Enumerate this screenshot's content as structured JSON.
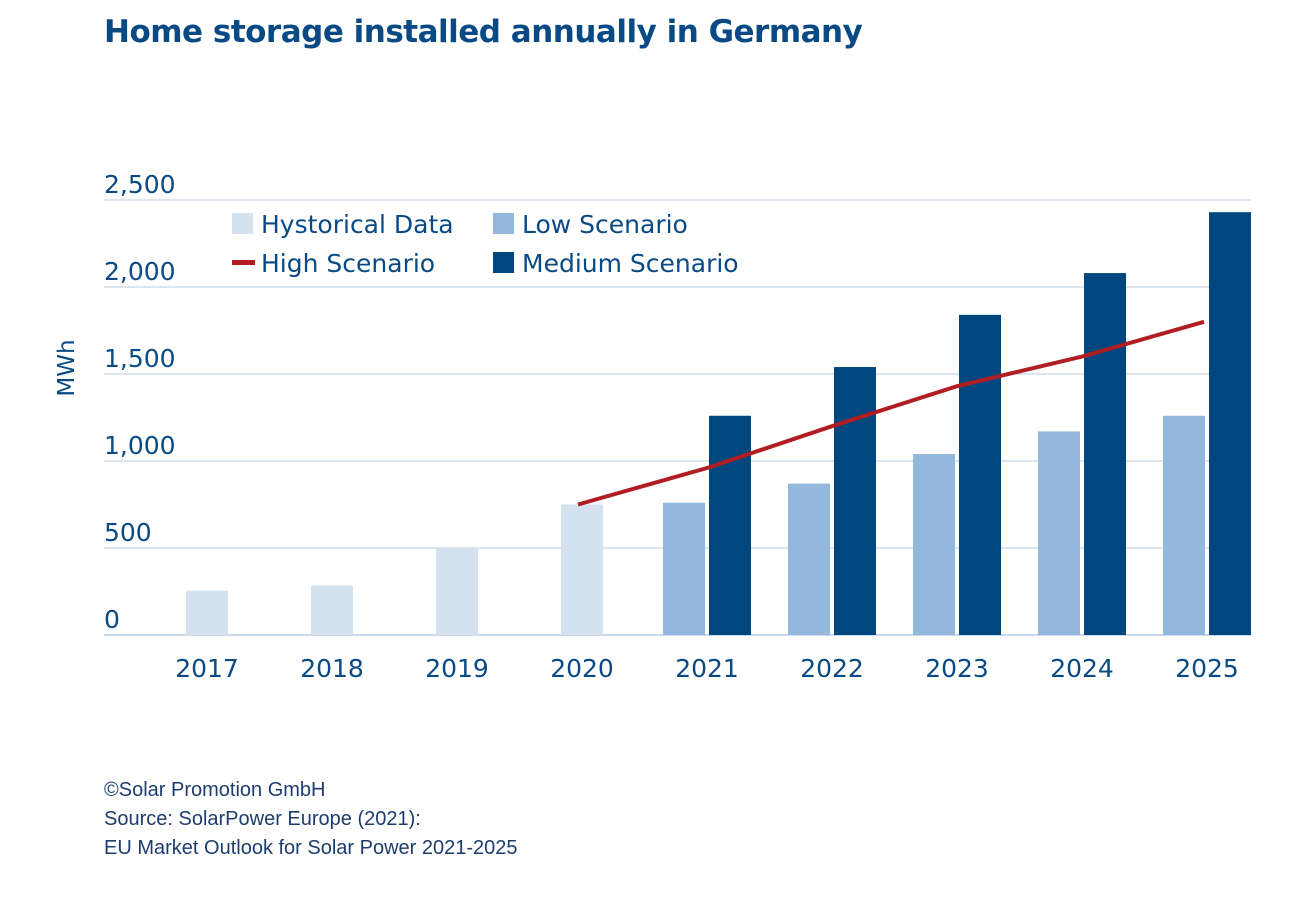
{
  "colors": {
    "title": "#0a4a84",
    "axis_text": "#0a4a84",
    "grid": "#b9cde3",
    "historical": "#d4e1ef",
    "low": "#94b7dc",
    "medium": "#00477f",
    "high": "#b01e23"
  },
  "chart_data": {
    "type": "bar",
    "title": "Home storage installed annually in Germany",
    "ylabel": "MWh",
    "xlabel": "",
    "ylim": [
      0,
      2500
    ],
    "yticks": [
      0,
      500,
      1000,
      1500,
      2000,
      2500
    ],
    "ytick_labels": [
      "0",
      "500",
      "1,000",
      "1,500",
      "2,000",
      "2,500"
    ],
    "grid": true,
    "legend_placement": "top-left",
    "categories": [
      "2017",
      "2018",
      "2019",
      "2020",
      "2021",
      "2022",
      "2023",
      "2024",
      "2025"
    ],
    "series": [
      {
        "name": "Hystorical Data",
        "kind": "bar",
        "color_key": "historical",
        "values": [
          255,
          285,
          500,
          750,
          null,
          null,
          null,
          null,
          null
        ]
      },
      {
        "name": "Low Scenario",
        "kind": "bar",
        "color_key": "low",
        "values": [
          null,
          null,
          null,
          null,
          760,
          870,
          1040,
          1170,
          1260
        ]
      },
      {
        "name": "Medium Scenario",
        "kind": "bar",
        "color_key": "medium",
        "values": [
          null,
          null,
          null,
          null,
          1260,
          1540,
          1840,
          2080,
          2430
        ]
      },
      {
        "name": "High Scenario",
        "kind": "line",
        "color_key": "high",
        "values": [
          null,
          null,
          null,
          750,
          960,
          1200,
          1430,
          1600,
          1800
        ]
      }
    ]
  },
  "footer": {
    "line1": "©Solar Promotion GmbH",
    "line2": "Source: SolarPower Europe (2021):",
    "line3": "EU Market Outlook for Solar Power 2021-2025"
  }
}
